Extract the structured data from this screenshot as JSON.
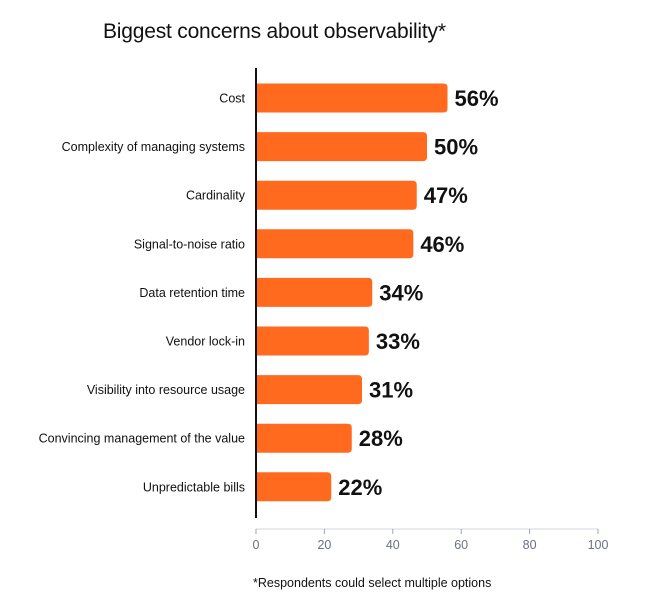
{
  "colors": {
    "bar": "#ff6a1f",
    "axis": "#111111",
    "tick_label": "#6b7280",
    "text": "#111111"
  },
  "footnote": "*Respondents could select multiple options",
  "chart_data": {
    "type": "bar",
    "orientation": "horizontal",
    "title": "Biggest concerns about observability*",
    "xlabel": "",
    "ylabel": "",
    "xlim": [
      0,
      100
    ],
    "x_ticks": [
      0,
      20,
      40,
      60,
      80,
      100
    ],
    "grid": false,
    "legend": "none",
    "categories": [
      "Cost",
      "Complexity of managing systems",
      "Cardinality",
      "Signal-to-noise ratio",
      "Data retention time",
      "Vendor lock-in",
      "Visibility into resource usage",
      "Convincing management of the value",
      "Unpredictable bills"
    ],
    "values": [
      56,
      50,
      47,
      46,
      34,
      33,
      31,
      28,
      22
    ],
    "data_labels": [
      "56%",
      "50%",
      "47%",
      "46%",
      "34%",
      "33%",
      "31%",
      "28%",
      "22%"
    ]
  }
}
